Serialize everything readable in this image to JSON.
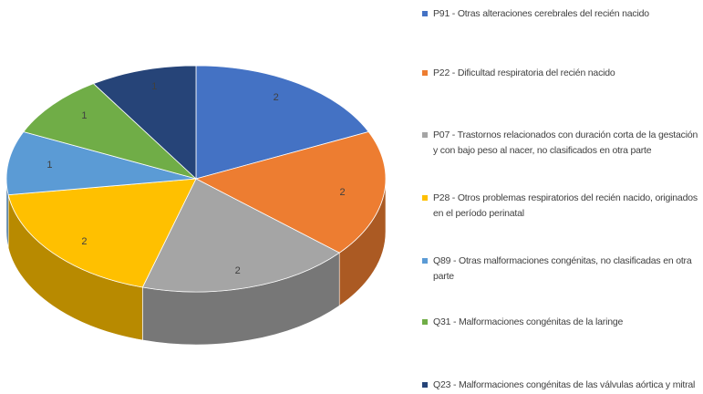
{
  "chart_data": {
    "type": "pie",
    "categories": [
      "P91 - Otras alteraciones cerebrales del recién nacido",
      "P22 - Dificultad respiratoria del recién nacido",
      "P07 - Trastornos relacionados con duración corta de la gestación y con bajo peso al nacer, no clasificados en otra parte",
      "P28 - Otros problemas respiratorios del recién nacido, originados en el período perinatal",
      "Q89 - Otras malformaciones congénitas, no clasificadas en otra parte",
      "Q31 - Malformaciones congénitas de la laringe",
      "Q23 - Malformaciones congénitas de las válvulas aórtica y mitral"
    ],
    "values": [
      2,
      2,
      2,
      2,
      1,
      1,
      1
    ],
    "colors": [
      "#4472c4",
      "#ed7d31",
      "#a5a5a5",
      "#ffc000",
      "#5b9bd5",
      "#70ad47",
      "#264478"
    ],
    "legend": "right"
  }
}
